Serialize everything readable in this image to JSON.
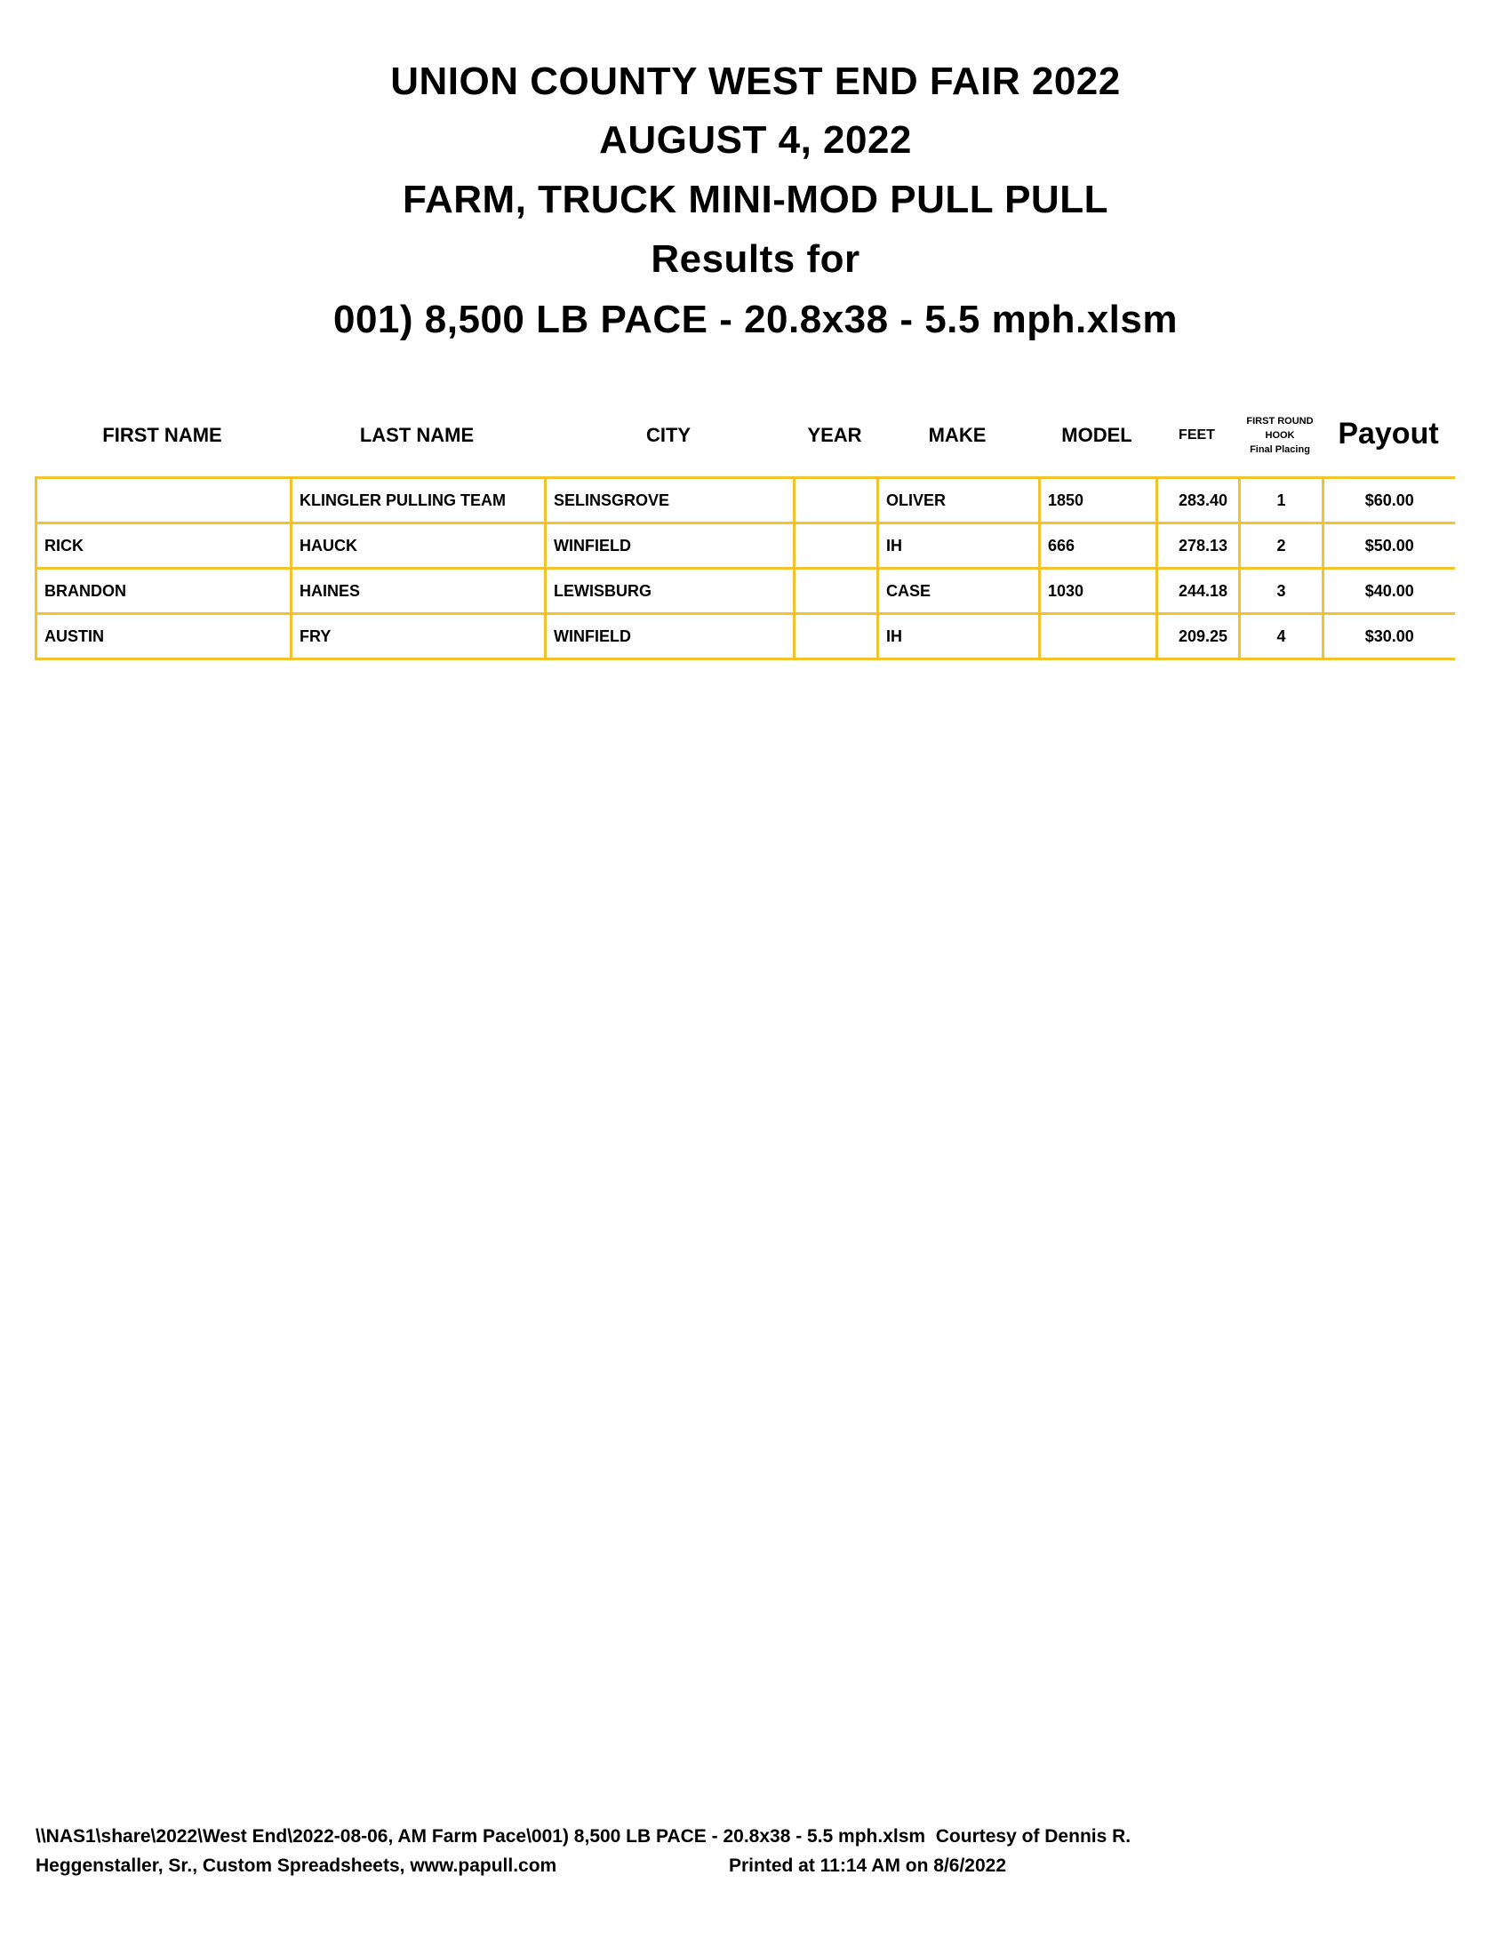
{
  "title_lines": [
    "UNION COUNTY WEST END FAIR 2022",
    "AUGUST 4, 2022",
    "FARM, TRUCK MINI-MOD PULL PULL",
    "Results for",
    "001) 8,500 LB PACE - 20.8x38 - 5.5 mph.xlsm"
  ],
  "table": {
    "headers": {
      "first_name": "FIRST NAME",
      "last_name": "LAST NAME",
      "city": "CITY",
      "year": "YEAR",
      "make": "MAKE",
      "model": "MODEL",
      "feet": "FEET",
      "placing_1": "FIRST ROUND",
      "placing_2": "HOOK",
      "placing_3": "Final Placing",
      "payout": "Payout"
    },
    "border_color": "#f2c32c",
    "rows": [
      {
        "first_name": "",
        "last_name": "KLINGLER PULLING TEAM",
        "city": "SELINSGROVE",
        "year": "",
        "make": "OLIVER",
        "model": "1850",
        "feet": "283.40",
        "place": "1",
        "payout": "$60.00"
      },
      {
        "first_name": "RICK",
        "last_name": "HAUCK",
        "city": "WINFIELD",
        "year": "",
        "make": "IH",
        "model": "666",
        "feet": "278.13",
        "place": "2",
        "payout": "$50.00"
      },
      {
        "first_name": "BRANDON",
        "last_name": "HAINES",
        "city": "LEWISBURG",
        "year": "",
        "make": "CASE",
        "model": "1030",
        "feet": "244.18",
        "place": "3",
        "payout": "$40.00"
      },
      {
        "first_name": "AUSTIN",
        "last_name": "FRY",
        "city": "WINFIELD",
        "year": "",
        "make": "IH",
        "model": "",
        "feet": "209.25",
        "place": "4",
        "payout": "$30.00"
      }
    ]
  },
  "footer": {
    "line1": "\\\\NAS1\\share\\2022\\West End\\2022-08-06, AM Farm Pace\\001) 8,500 LB PACE - 20.8x38 - 5.5 mph.xlsm  Courtesy of Dennis R.",
    "line2_left": "Heggenstaller, Sr., Custom Spreadsheets, www.papull.com",
    "line2_right": "Printed at 11:14 AM on 8/6/2022"
  }
}
